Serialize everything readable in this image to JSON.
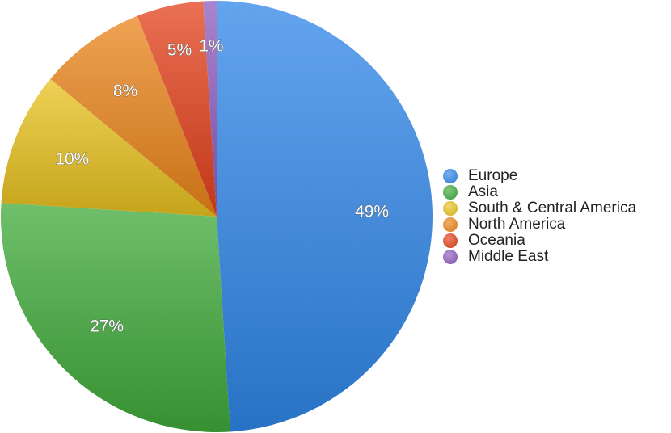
{
  "chart_data": {
    "type": "pie",
    "title": "",
    "start": "top",
    "direction": "clockwise",
    "legend_position": "right",
    "slices": [
      {
        "name": "Europe",
        "value": 49,
        "label": "49%",
        "color": "#2f86e8"
      },
      {
        "name": "Asia",
        "value": 27,
        "label": "27%",
        "color": "#3fa93a"
      },
      {
        "name": "South & Central America",
        "value": 10,
        "label": "10%",
        "color": "#e8c11e"
      },
      {
        "name": "North America",
        "value": 8,
        "label": "8%",
        "color": "#ea841a"
      },
      {
        "name": "Oceania",
        "value": 5,
        "label": "5%",
        "color": "#e3401b"
      },
      {
        "name": "Middle East",
        "value": 1,
        "label": "1%",
        "color": "#8d5bbd"
      }
    ]
  }
}
